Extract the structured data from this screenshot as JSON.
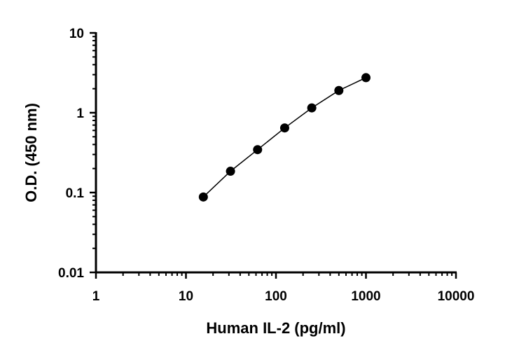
{
  "chart_data": {
    "type": "scatter",
    "title": "",
    "xlabel": "Human IL-2 (pg/ml)",
    "ylabel": "O.D. (450 nm)",
    "xscale": "log",
    "yscale": "log",
    "xlim": [
      1,
      10000
    ],
    "ylim": [
      0.01,
      10
    ],
    "x_ticks": [
      "1",
      "10",
      "100",
      "1000",
      "10000"
    ],
    "y_ticks": [
      "0.01",
      "0.1",
      "1",
      "10"
    ],
    "grid": false,
    "legend": "none",
    "fit_line": true,
    "series": [
      {
        "x": [
          15.6,
          31.25,
          62.5,
          125,
          250,
          500,
          1000
        ],
        "y": [
          0.088,
          0.185,
          0.345,
          0.645,
          1.15,
          1.9,
          2.75
        ]
      }
    ],
    "colors": {
      "point": "#000000",
      "line": "#000000"
    }
  }
}
